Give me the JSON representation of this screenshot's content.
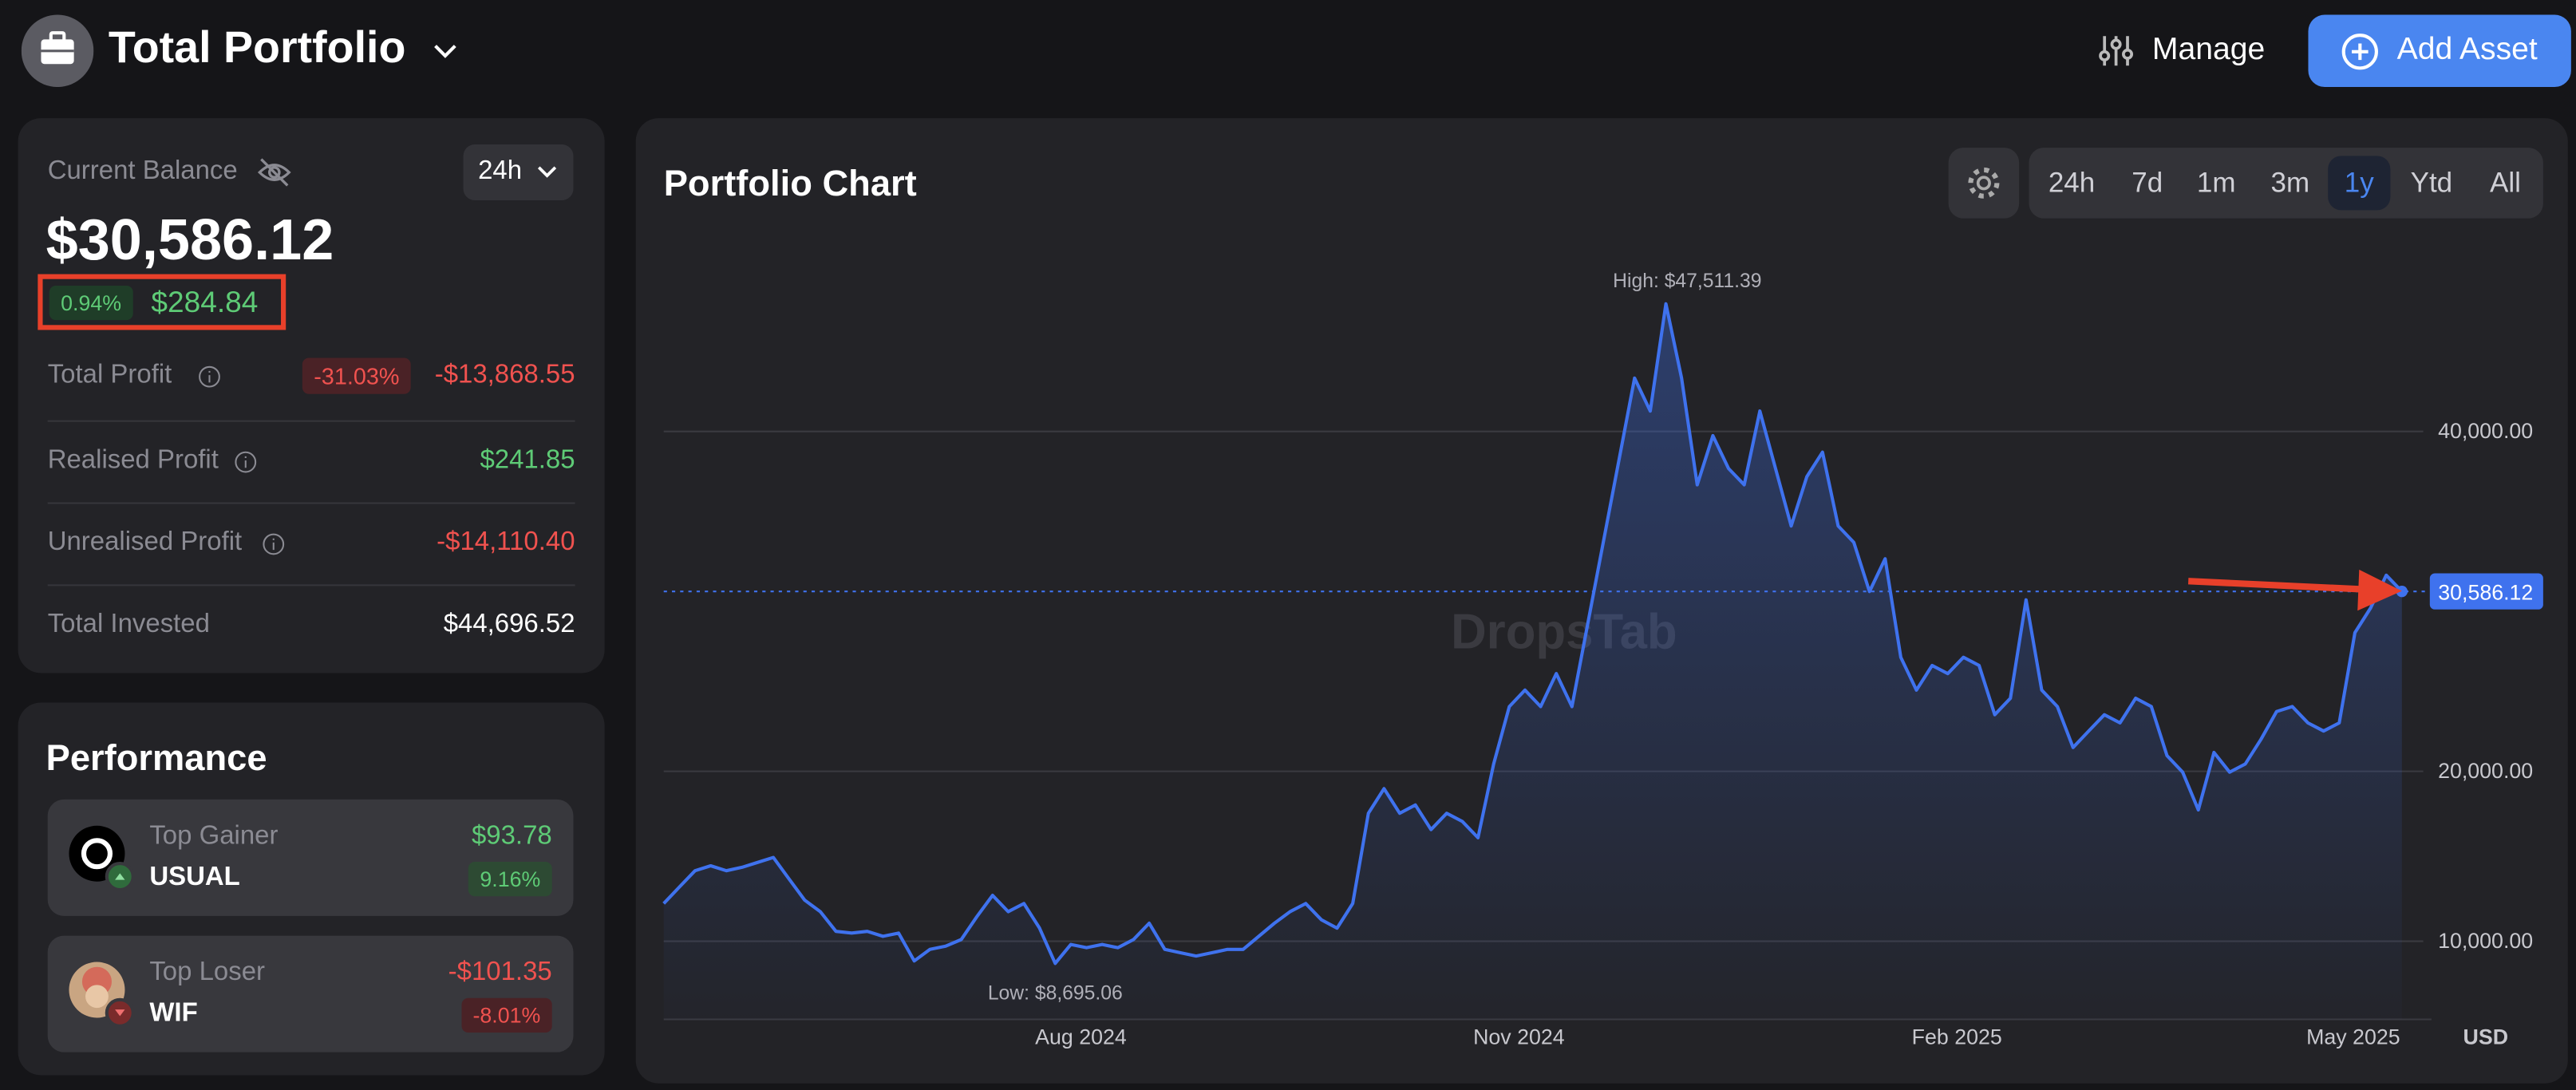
{
  "header": {
    "title": "Total Portfolio",
    "actions": [
      "Manage",
      "Add Asset"
    ]
  },
  "balance": {
    "label": "Current Balance",
    "period": "24h",
    "value": "$30,586.12",
    "change_percent": "0.94%",
    "change_value": "$284.84",
    "rows": [
      {
        "label": "Total Profit",
        "badge": "-31.03%",
        "value": "-$13,868.55"
      },
      {
        "label": "Realised Profit",
        "value": "$241.85"
      },
      {
        "label": "Unrealised Profit",
        "value": "-$14,110.40"
      },
      {
        "label": "Total Invested",
        "value": "$44,696.52"
      }
    ]
  },
  "performance": {
    "title": "Performance",
    "cards": [
      {
        "label": "Top Gainer",
        "asset": "USUAL",
        "value": "$93.78",
        "percent": "9.16%"
      },
      {
        "label": "Top Loser",
        "asset": "WIF",
        "value": "-$101.35",
        "percent": "-8.01%"
      }
    ]
  },
  "chart": {
    "type": "line",
    "title": "Portfolio Chart",
    "timeframes": [
      "24h",
      "7d",
      "1m",
      "3m",
      "1y",
      "Ytd",
      "All"
    ],
    "active_timeframe": 4,
    "watermark": "DropsTab",
    "color": "#3f72ee",
    "values": [
      12220,
      13190,
      14150,
      14440,
      14150,
      14350,
      14640,
      14930,
      13670,
      12420,
      11740,
      10580,
      10480,
      10580,
      10290,
      10480,
      8840,
      9520,
      9710,
      10100,
      11450,
      12700,
      11740,
      12220,
      10770,
      8695.06,
      9810,
      9620,
      9810,
      9620,
      10100,
      11060,
      9520,
      9320,
      9130,
      9320,
      9520,
      9520,
      10290,
      11060,
      11740,
      12220,
      11260,
      10770,
      12220,
      17530,
      18980,
      17530,
      18020,
      16570,
      17530,
      17050,
      16090,
      20430,
      23810,
      24780,
      23810,
      25750,
      23810,
      28640,
      33470,
      38300,
      43140,
      41200,
      47511.39,
      43140,
      36860,
      39750,
      37820,
      36860,
      41200,
      37820,
      34440,
      37340,
      38780,
      34440,
      33470,
      30580,
      32510,
      26710,
      24780,
      26230,
      25750,
      26710,
      26230,
      23330,
      24300,
      30090,
      24780,
      23810,
      21400,
      22370,
      23330,
      22850,
      24300,
      23810,
      20920,
      19950,
      17730,
      21110,
      19950,
      20430,
      21880,
      23520,
      23810,
      22850,
      22370,
      22850,
      28160,
      29610,
      31540,
      30586.12
    ],
    "ylim": [
      5400,
      50900
    ],
    "yticks": [
      {
        "value": 10000,
        "label": "10,000.00"
      },
      {
        "value": 20000,
        "label": "20,000.00"
      },
      {
        "value": 40000,
        "label": "40,000.00"
      }
    ],
    "xticks": [
      "Aug 2024",
      "Nov 2024",
      "Feb 2025",
      "May 2025"
    ],
    "high_label": "High: $47,511.39",
    "low_label": "Low: $8,695.06",
    "current_label": "30,586.12",
    "unit": "USD"
  }
}
